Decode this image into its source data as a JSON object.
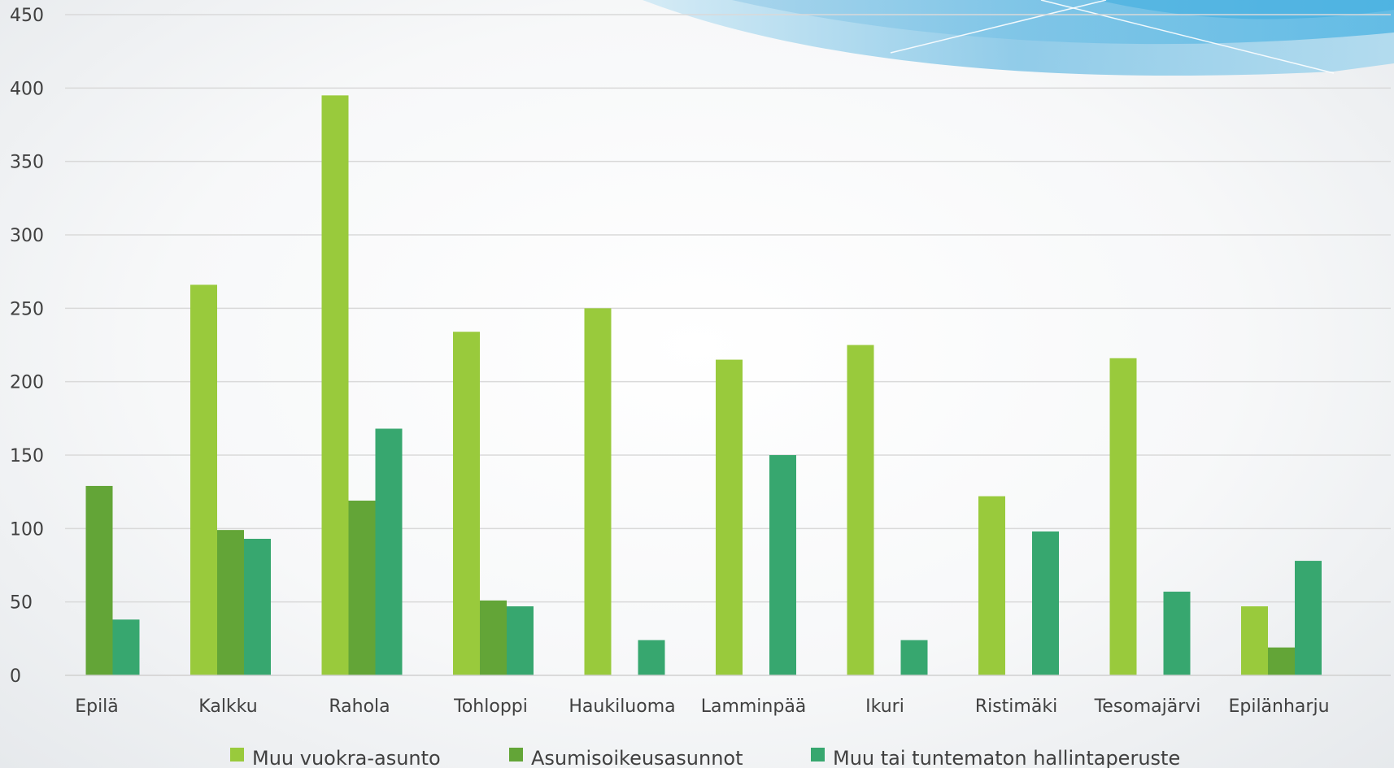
{
  "chart_data": {
    "type": "bar",
    "categories": [
      "Epilä",
      "Kalkku",
      "Rahola",
      "Tohloppi",
      "Haukiluoma",
      "Lamminpää",
      "Ikuri",
      "Ristimäki",
      "Tesomajärvi",
      "Epilänharju"
    ],
    "series": [
      {
        "name": "Muu vuokra-asunto",
        "color": "#99ca3c",
        "values": [
          0,
          266,
          395,
          234,
          250,
          215,
          225,
          122,
          216,
          47
        ]
      },
      {
        "name": "Asumisoikeusasunnot",
        "color": "#63a537",
        "values": [
          129,
          99,
          119,
          51,
          0,
          0,
          0,
          0,
          0,
          19
        ]
      },
      {
        "name": "Muu tai tuntematon hallintaperuste",
        "color": "#37a76f",
        "values": [
          38,
          93,
          168,
          47,
          24,
          150,
          24,
          98,
          57,
          78
        ]
      }
    ],
    "ylim": [
      0,
      450
    ],
    "yticks": [
      "0",
      "50",
      "100",
      "150",
      "200",
      "250",
      "300",
      "350",
      "400",
      "450"
    ],
    "grid": true,
    "legend": "bottom",
    "title": "",
    "xlabel": "",
    "ylabel": ""
  }
}
